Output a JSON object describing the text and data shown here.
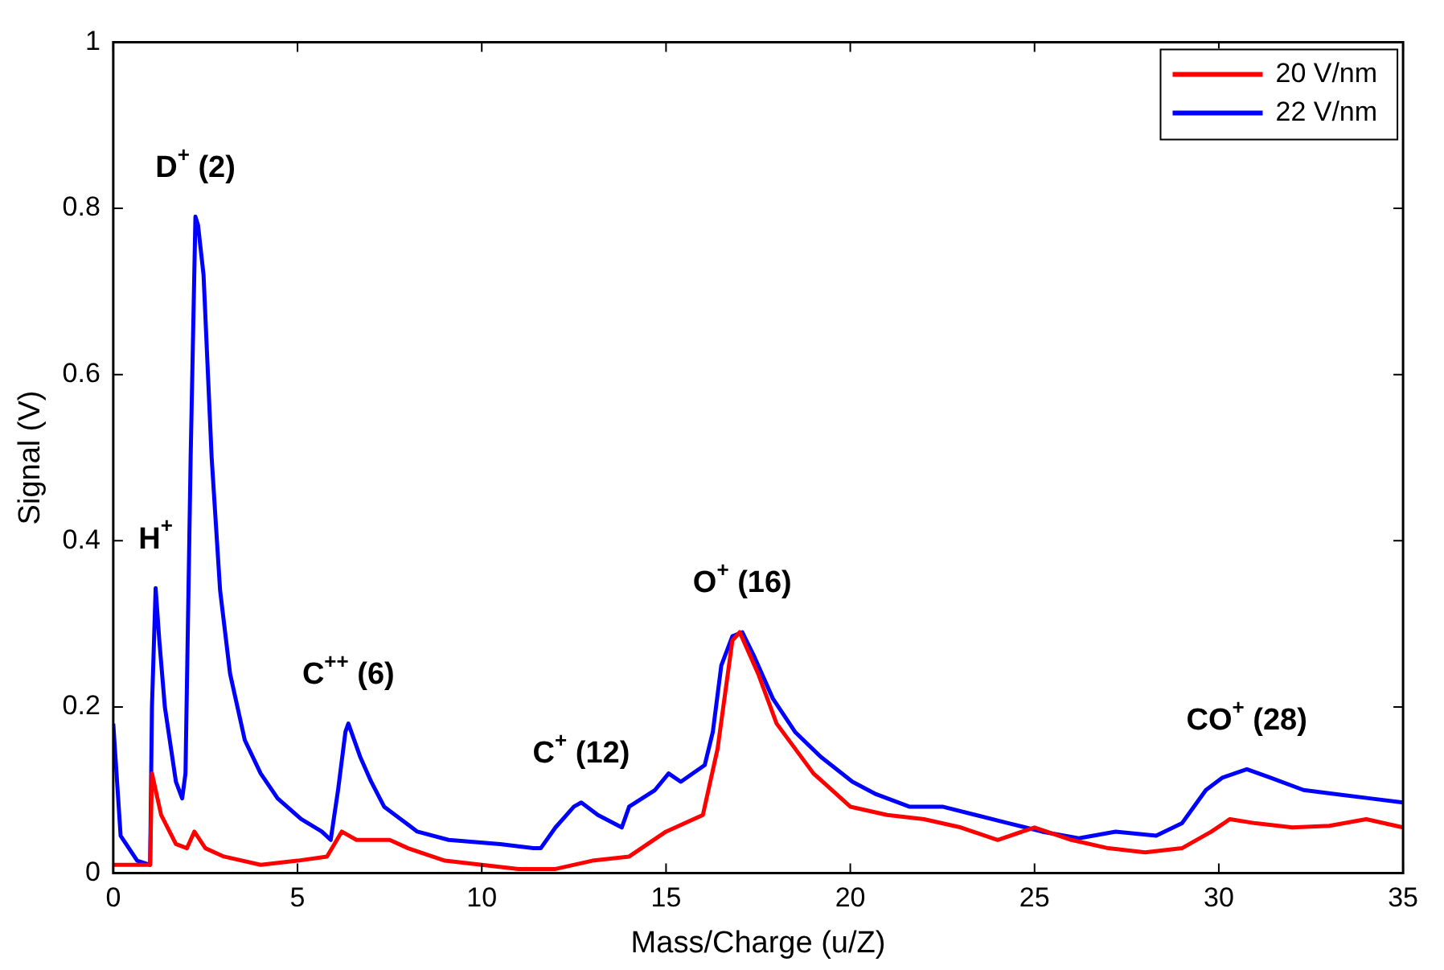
{
  "chart_data": {
    "type": "line",
    "xlabel": "Mass/Charge (u/Z)",
    "ylabel": "Signal (V)",
    "xlim": [
      0,
      35
    ],
    "ylim": [
      0,
      1
    ],
    "xticks": [
      0,
      5,
      10,
      15,
      20,
      25,
      30,
      35
    ],
    "yticks": [
      0,
      0.2,
      0.4,
      0.6,
      0.8,
      1
    ],
    "grid": false,
    "legend": "top right",
    "marker": "none",
    "line_style": "solid",
    "series": [
      {
        "name": "20 V/nm",
        "color": "#ff0000",
        "x": [
          0,
          0.5,
          1.0,
          1.05,
          1.3,
          1.7,
          2.0,
          2.2,
          2.5,
          3,
          4,
          5,
          5.8,
          6.2,
          6.6,
          7.5,
          8,
          9,
          10,
          11,
          12,
          13,
          14,
          15,
          16,
          16.4,
          16.8,
          17.0,
          17.5,
          18,
          19,
          20,
          21,
          22,
          23,
          24,
          25,
          26,
          27,
          28,
          29,
          29.8,
          30.3,
          31,
          32,
          33,
          34,
          35
        ],
        "values": [
          0.01,
          0.01,
          0.01,
          0.12,
          0.07,
          0.035,
          0.03,
          0.05,
          0.03,
          0.02,
          0.01,
          0.015,
          0.02,
          0.05,
          0.04,
          0.04,
          0.03,
          0.015,
          0.01,
          0.005,
          0.005,
          0.015,
          0.02,
          0.05,
          0.07,
          0.15,
          0.28,
          0.29,
          0.24,
          0.18,
          0.12,
          0.08,
          0.07,
          0.065,
          0.055,
          0.04,
          0.055,
          0.04,
          0.03,
          0.025,
          0.03,
          0.05,
          0.065,
          0.06,
          0.055,
          0.057,
          0.065,
          0.055
        ]
      },
      {
        "name": "22 V/nm",
        "color": "#0000ff",
        "x": [
          0,
          0.2,
          0.65,
          1.0,
          1.05,
          1.15,
          1.25,
          1.4,
          1.7,
          1.87,
          1.96,
          2.1,
          2.23,
          2.3,
          2.45,
          2.67,
          2.9,
          3.17,
          3.57,
          4.0,
          4.46,
          5.1,
          5.66,
          5.9,
          6.1,
          6.3,
          6.38,
          6.7,
          7.0,
          7.35,
          8.25,
          9.1,
          10.5,
          11.4,
          11.6,
          12.0,
          12.5,
          12.7,
          13.15,
          13.8,
          14.0,
          14.7,
          15.07,
          15.4,
          16.05,
          16.27,
          16.5,
          16.8,
          17.07,
          17.4,
          17.9,
          18.5,
          19.2,
          20.06,
          20.7,
          21.6,
          22.5,
          23.4,
          24.3,
          25.2,
          26.2,
          27.2,
          28.3,
          29.0,
          29.65,
          30.1,
          30.76,
          31.4,
          32.3,
          33.2,
          34.1,
          35
        ],
        "values": [
          0.18,
          0.045,
          0.015,
          0.01,
          0.2,
          0.343,
          0.28,
          0.2,
          0.11,
          0.09,
          0.12,
          0.5,
          0.79,
          0.78,
          0.72,
          0.5,
          0.34,
          0.24,
          0.16,
          0.12,
          0.09,
          0.065,
          0.05,
          0.04,
          0.1,
          0.17,
          0.18,
          0.14,
          0.11,
          0.08,
          0.05,
          0.04,
          0.035,
          0.03,
          0.03,
          0.055,
          0.08,
          0.085,
          0.07,
          0.055,
          0.08,
          0.1,
          0.12,
          0.11,
          0.13,
          0.17,
          0.25,
          0.285,
          0.29,
          0.26,
          0.21,
          0.17,
          0.14,
          0.11,
          0.095,
          0.08,
          0.08,
          0.07,
          0.06,
          0.05,
          0.042,
          0.05,
          0.045,
          0.06,
          0.1,
          0.115,
          0.125,
          0.115,
          0.1,
          0.095,
          0.09,
          0.085
        ]
      }
    ],
    "annotations": [
      {
        "text": "H$^{+}$",
        "x": 1.15,
        "y": 0.343
      },
      {
        "text": "D$^{+}$ (2)",
        "x": 2.23,
        "y": 0.79
      },
      {
        "text": "C$^{++}$ (6)",
        "x": 6.38,
        "y": 0.18
      },
      {
        "text": "C$^{+}$ (12)",
        "x": 12.7,
        "y": 0.085
      },
      {
        "text": "O$^{+}$ (16)",
        "x": 17.07,
        "y": 0.29
      },
      {
        "text": "CO$^{+}$ (28)",
        "x": 30.76,
        "y": 0.125
      }
    ]
  }
}
